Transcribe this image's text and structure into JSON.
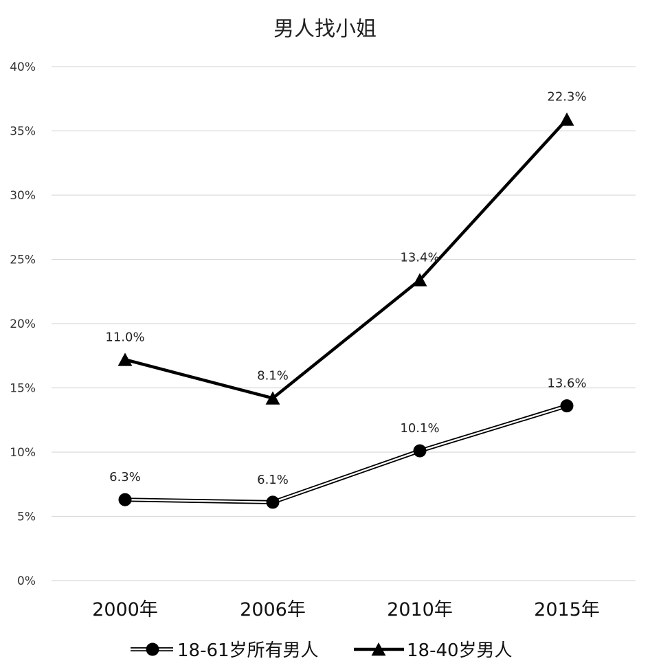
{
  "chart_data": {
    "type": "line",
    "title": "男人找小姐",
    "categories": [
      "2000年",
      "2006年",
      "2010年",
      "2015年"
    ],
    "y_ticks": [
      "0%",
      "5%",
      "10%",
      "15%",
      "20%",
      "25%",
      "30%",
      "35%",
      "40%"
    ],
    "ylim": [
      0,
      40
    ],
    "grid": true,
    "legend_position": "bottom",
    "series": [
      {
        "name": "18-61岁所有男人",
        "marker": "circle",
        "line_style": "double",
        "values": [
          6.3,
          6.1,
          10.1,
          13.6
        ],
        "labels": [
          "6.3%",
          "6.1%",
          "10.1%",
          "13.6%"
        ]
      },
      {
        "name": "18-40岁男人",
        "marker": "triangle",
        "line_style": "solid",
        "values": [
          17.2,
          14.2,
          23.4,
          35.9
        ],
        "labels": [
          "11.0%",
          "8.1%",
          "13.4%",
          "22.3%"
        ]
      }
    ],
    "colors": {
      "line": "#000000",
      "grid": "#d9d9d9"
    }
  }
}
